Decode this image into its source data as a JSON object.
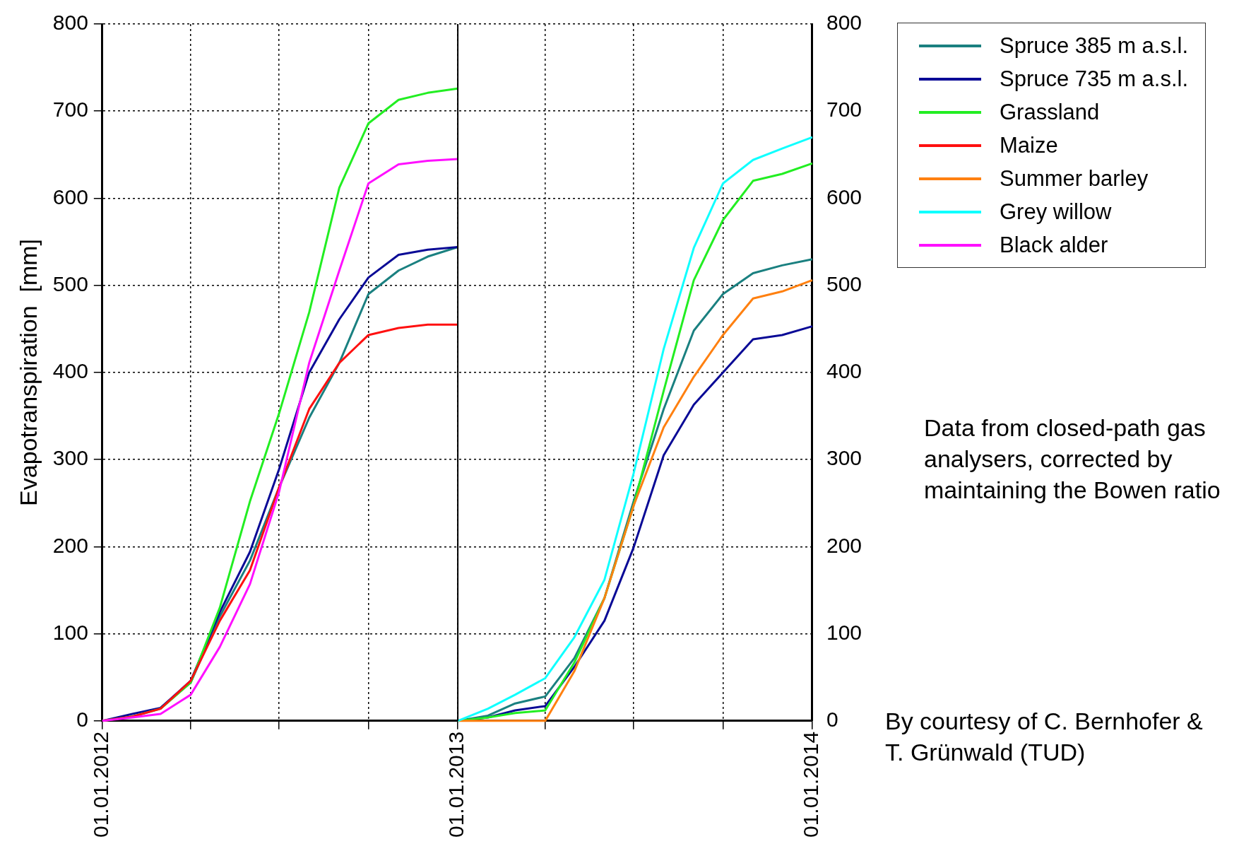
{
  "chart_data": {
    "type": "line",
    "ylabel": "Evapotranspiration  [mm]",
    "ylim": [
      0,
      800
    ],
    "yticks": [
      0,
      100,
      200,
      300,
      400,
      500,
      600,
      700,
      800
    ],
    "y2lim": [
      0,
      800
    ],
    "y2ticks": [
      0,
      100,
      200,
      300,
      400,
      500,
      600,
      700,
      800
    ],
    "xlim": [
      "2012-01-01",
      "2014-01-01"
    ],
    "xticks": [
      {
        "value": "2012-01-01",
        "label": "01.01.2012"
      },
      {
        "value": "2012-04-01",
        "label": null
      },
      {
        "value": "2012-07-01",
        "label": null
      },
      {
        "value": "2012-10-01",
        "label": null
      },
      {
        "value": "2013-01-01",
        "label": "01.01.2013"
      },
      {
        "value": "2013-04-01",
        "label": null
      },
      {
        "value": "2013-07-01",
        "label": null
      },
      {
        "value": "2013-10-01",
        "label": null
      },
      {
        "value": "2014-01-01",
        "label": "01.01.2014"
      }
    ],
    "grid": true,
    "legend": "top right",
    "marker": "none",
    "line_style": "solid",
    "ref_lines": [
      {
        "axis": "x",
        "value": "2013-01-01",
        "color": "#000000",
        "line_style": "solid"
      }
    ],
    "annotations": [
      "Data from closed-path gas analysers, corrected by maintaining the Bowen ratio",
      "By courtesy of C. Bernhofer & T. Grünwald (TUD)"
    ],
    "series": [
      {
        "name": "Spruce 385 m a.s.l.",
        "color": "#1a8080",
        "x": [
          null,
          null,
          "2012-03-01",
          "2012-04-01",
          "2012-05-01",
          "2012-06-01",
          "2012-07-01",
          "2012-08-01",
          "2012-09-01",
          "2012-10-01",
          "2012-11-01",
          "2012-12-01",
          "2013-01-01",
          null,
          "2013-01-01",
          "2013-02-01",
          "2013-03-01",
          "2013-04-01",
          "2013-05-01",
          "2013-06-01",
          "2013-07-01",
          "2013-08-01",
          "2013-09-01",
          "2013-10-01",
          "2013-11-01",
          "2013-12-01",
          "2014-01-01"
        ],
        "values": [
          null,
          null,
          15,
          44,
          120,
          184,
          268,
          348,
          411,
          490,
          517,
          533,
          544,
          null,
          0,
          6,
          20,
          28,
          72,
          141,
          252,
          358,
          448,
          490,
          514,
          523,
          530
        ]
      },
      {
        "name": "Spruce 735 m a.s.l.",
        "color": "#0a0a96",
        "x": [
          "2012-01-01",
          "2012-02-01",
          "2012-03-01",
          "2012-04-01",
          "2012-05-01",
          "2012-06-01",
          "2012-07-01",
          "2012-08-01",
          "2012-09-01",
          "2012-10-01",
          "2012-11-01",
          "2012-12-01",
          "2013-01-01",
          null,
          "2013-01-01",
          "2013-02-01",
          "2013-03-01",
          "2013-04-01",
          "2013-05-01",
          "2013-06-01",
          "2013-07-01",
          "2013-08-01",
          "2013-09-01",
          "2013-10-01",
          "2013-11-01",
          "2013-12-01",
          "2014-01-01"
        ],
        "values": [
          0,
          8,
          15,
          46,
          125,
          194,
          289,
          400,
          461,
          509,
          535,
          541,
          544,
          null,
          0,
          4,
          12,
          17,
          62,
          115,
          199,
          305,
          363,
          400,
          438,
          443,
          453
        ]
      },
      {
        "name": "Grassland",
        "color": "#22ee22",
        "x": [
          "2012-01-01",
          "2012-02-01",
          "2012-03-01",
          "2012-04-01",
          "2012-05-01",
          "2012-06-01",
          "2012-07-01",
          "2012-08-01",
          "2012-09-01",
          "2012-10-01",
          "2012-11-01",
          "2012-12-01",
          "2013-01-01",
          null,
          "2013-01-01",
          "2013-02-01",
          "2013-03-01",
          "2013-04-01",
          "2013-05-01",
          "2013-06-01",
          "2013-07-01",
          "2013-08-01",
          "2013-09-01",
          "2013-10-01",
          "2013-11-01",
          "2013-12-01",
          "2014-01-01"
        ],
        "values": [
          0,
          5,
          14,
          44,
          130,
          252,
          353,
          469,
          612,
          686,
          713,
          721,
          726,
          null,
          0,
          4,
          9,
          12,
          67,
          141,
          247,
          379,
          506,
          575,
          620,
          628,
          640
        ]
      },
      {
        "name": "Maize",
        "color": "#ff1010",
        "x": [
          "2012-01-01",
          "2012-02-01",
          "2012-03-01",
          "2012-04-01",
          "2012-05-01",
          "2012-06-01",
          "2012-07-01",
          "2012-08-01",
          "2012-09-01",
          "2012-10-01",
          "2012-11-01",
          "2012-12-01",
          "2013-01-01"
        ],
        "values": [
          0,
          5,
          14,
          46,
          115,
          173,
          268,
          358,
          411,
          443,
          451,
          455,
          455
        ]
      },
      {
        "name": "Summer barley",
        "color": "#ff8010",
        "x": [
          "2013-01-01",
          "2013-02-01",
          "2013-03-01",
          "2013-04-01",
          "2013-05-01",
          "2013-06-01",
          "2013-07-01",
          "2013-08-01",
          "2013-09-01",
          "2013-10-01",
          "2013-11-01",
          "2013-12-01",
          "2014-01-01"
        ],
        "values": [
          0,
          0,
          0,
          0,
          57,
          141,
          247,
          337,
          395,
          443,
          485,
          493,
          506
        ]
      },
      {
        "name": "Grey willow",
        "color": "#10ffff",
        "x": [
          "2013-01-01",
          "2013-02-01",
          "2013-03-01",
          "2013-04-01",
          "2013-05-01",
          "2013-06-01",
          "2013-07-01",
          "2013-08-01",
          "2013-09-01",
          "2013-10-01",
          "2013-11-01",
          "2013-12-01",
          "2014-01-01"
        ],
        "values": [
          0,
          14,
          30,
          49,
          96,
          162,
          284,
          427,
          543,
          617,
          644,
          657,
          670
        ]
      },
      {
        "name": "Black alder",
        "color": "#ff10ff",
        "x": [
          "2012-01-01",
          "2012-02-01",
          "2012-03-01",
          "2012-04-01",
          "2012-05-01",
          "2012-06-01",
          "2012-07-01",
          "2012-08-01",
          "2012-09-01",
          "2012-10-01",
          "2012-11-01",
          "2012-12-01",
          "2013-01-01"
        ],
        "values": [
          0,
          4,
          8,
          30,
          85,
          157,
          263,
          411,
          517,
          617,
          639,
          643,
          645
        ]
      }
    ]
  }
}
